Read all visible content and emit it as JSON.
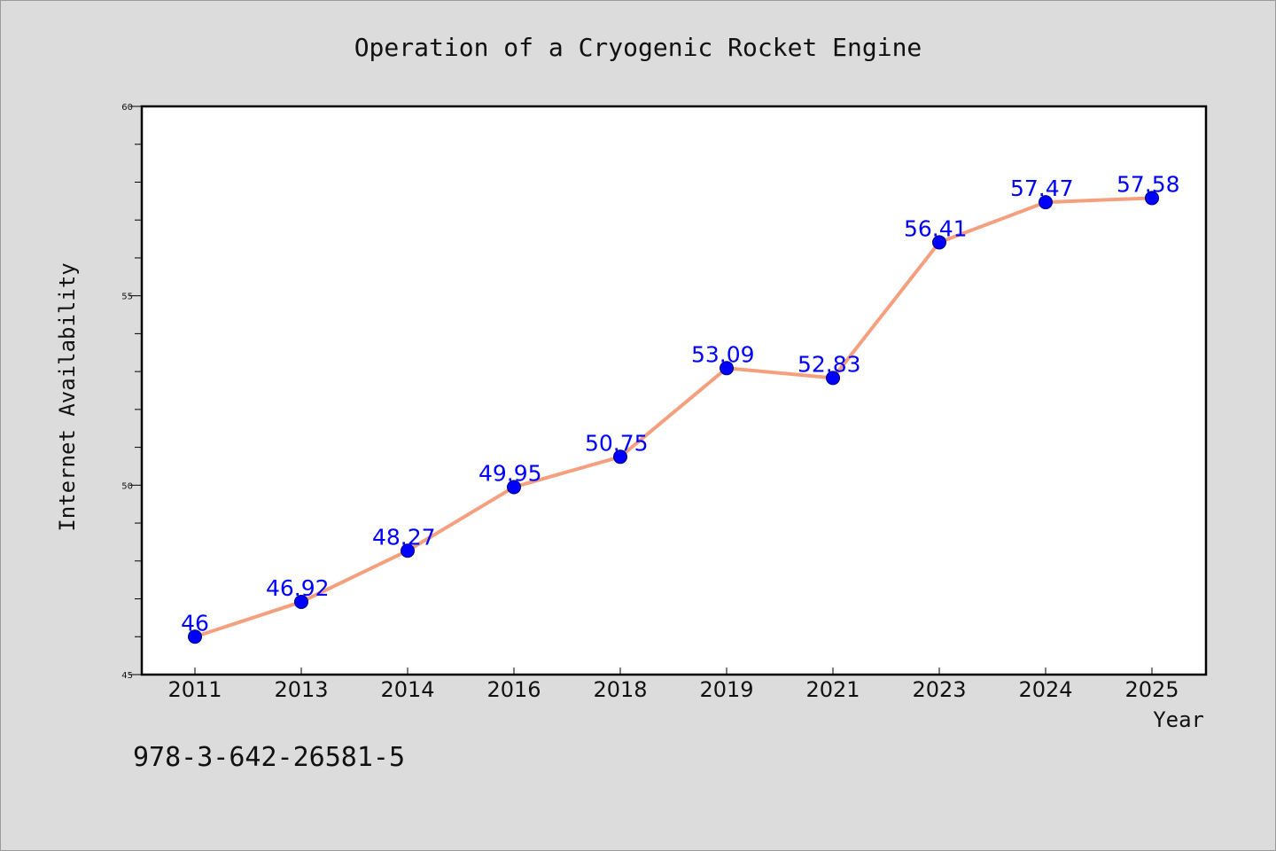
{
  "chart_data": {
    "type": "line",
    "title": "Operation of a Cryogenic Rocket Engine",
    "xlabel": "Year",
    "ylabel": "Internet Availability",
    "categories": [
      "2011",
      "2013",
      "2014",
      "2016",
      "2018",
      "2019",
      "2021",
      "2023",
      "2024",
      "2025"
    ],
    "series": [
      {
        "values": [
          46,
          46.92,
          48.27,
          49.95,
          50.75,
          53.09,
          52.83,
          56.41,
          57.47,
          57.58
        ],
        "labels": [
          "46",
          "46.92",
          "48.27",
          "49.95",
          "50.75",
          "53.09",
          "52.83",
          "56.41",
          "57.47",
          "57.58"
        ],
        "line_color": "#f4a07e",
        "marker_color": "#0000ff"
      }
    ],
    "ylim": [
      45,
      60
    ],
    "yticks": [
      "45",
      "50",
      "55",
      "60"
    ],
    "grid": false,
    "legend": "none"
  },
  "footer_text": "978-3-642-26581-5"
}
